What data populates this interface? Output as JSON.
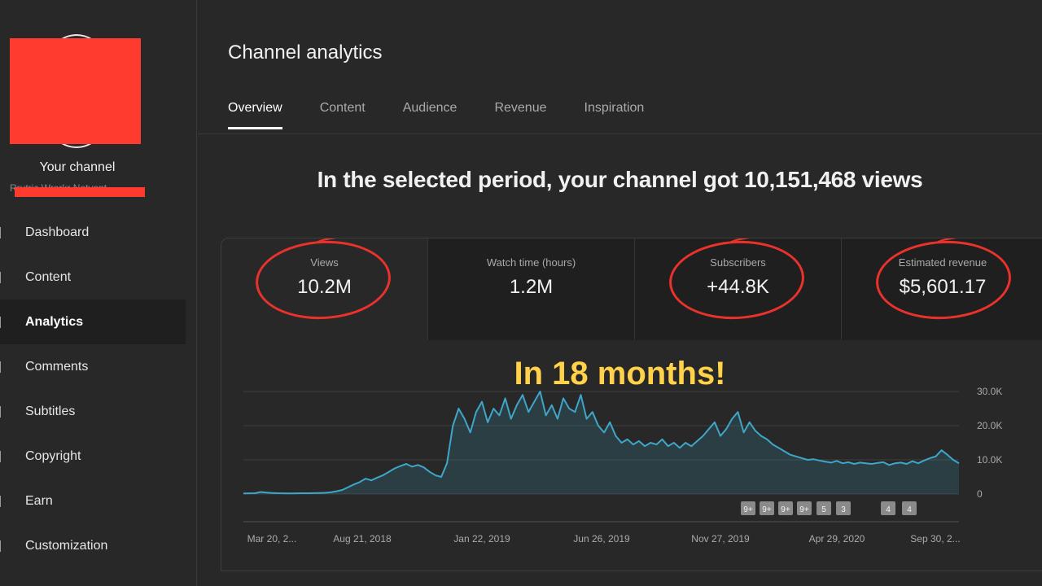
{
  "sidebar": {
    "channel_title": "Your channel",
    "channel_sub": "Rrutric Wrorkr Netvont",
    "items": [
      {
        "label": "Dashboard"
      },
      {
        "label": "Content"
      },
      {
        "label": "Analytics"
      },
      {
        "label": "Comments"
      },
      {
        "label": "Subtitles"
      },
      {
        "label": "Copyright"
      },
      {
        "label": "Earn"
      },
      {
        "label": "Customization"
      }
    ]
  },
  "header": {
    "title": "Channel analytics",
    "tabs": [
      {
        "label": "Overview"
      },
      {
        "label": "Content"
      },
      {
        "label": "Audience"
      },
      {
        "label": "Revenue"
      },
      {
        "label": "Inspiration"
      }
    ]
  },
  "main": {
    "headline": "In the selected period, your channel got 10,151,468 views",
    "annotation": "In 18 months!",
    "metrics": [
      {
        "label": "Views",
        "value": "10.2M"
      },
      {
        "label": "Watch time (hours)",
        "value": "1.2M"
      },
      {
        "label": "Subscribers",
        "value": "+44.8K"
      },
      {
        "label": "Estimated revenue",
        "value": "$5,601.17"
      }
    ]
  },
  "colors": {
    "accent_line": "#3ea6c9",
    "annotation_circle": "#e8322b",
    "annotation_text": "#ffd24a",
    "redaction": "#ff3b30"
  },
  "chart_data": {
    "type": "area",
    "series": [
      {
        "values": [
          200,
          220,
          250,
          600,
          400,
          300,
          250,
          220,
          200,
          210,
          230,
          250,
          260,
          300,
          350,
          500,
          800,
          1200,
          2000,
          2800,
          3500,
          4500,
          4000,
          4800,
          5500,
          6500,
          7500,
          8200,
          8800,
          8000,
          8500,
          7800,
          6500,
          5500,
          5000,
          9000,
          20000,
          25000,
          22000,
          18000,
          24000,
          27000,
          21000,
          25000,
          23000,
          28000,
          22000,
          26000,
          29000,
          24000,
          27000,
          30000,
          23000,
          26000,
          22000,
          28000,
          25000,
          24000,
          29000,
          22000,
          24000,
          20000,
          18000,
          21000,
          17000,
          15000,
          16000,
          14500,
          15500,
          14000,
          15000,
          14500,
          16000,
          14000,
          15000,
          13500,
          15000,
          14000,
          15500,
          17000,
          19000,
          21000,
          17000,
          19000,
          22000,
          24000,
          18000,
          21000,
          18500,
          17000,
          16000,
          14500,
          13500,
          12500,
          11500,
          11000,
          10500,
          10000,
          10200,
          9800,
          9500,
          9200,
          9700,
          9000,
          9300,
          8800,
          9200,
          9000,
          8800,
          9100,
          9300,
          8500,
          9000,
          9200,
          8800,
          9600,
          9000,
          9800,
          10500,
          11000,
          12800,
          11500,
          10000,
          9000
        ]
      }
    ],
    "x_tick_labels": [
      "Mar 20, 2...",
      "Aug 21, 2018",
      "Jan 22, 2019",
      "Jun 26, 2019",
      "Nov 27, 2019",
      "Apr 29, 2020",
      "Sep 30, 2..."
    ],
    "y_tick_labels": [
      "30.0K",
      "20.0K",
      "10.0K",
      "0"
    ],
    "ylim": [
      0,
      30000
    ],
    "grid": true,
    "markers": [
      "9+",
      "9+",
      "9+",
      "9+",
      "5",
      "3",
      "4",
      "4"
    ]
  }
}
